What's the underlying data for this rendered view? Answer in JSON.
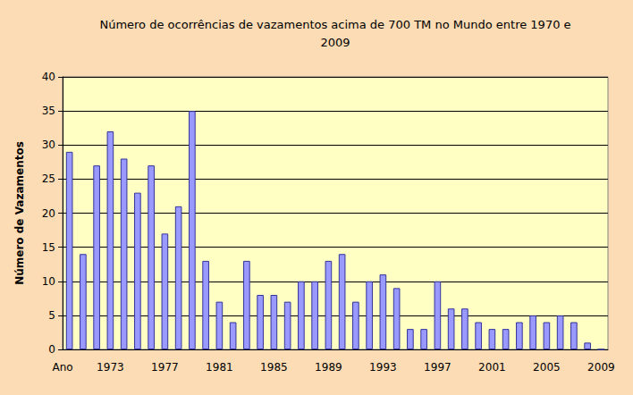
{
  "chart_data": {
    "type": "bar",
    "title": "Número de ocorrências de vazamentos acima de 700 TM no Mundo entre 1970 e\n2009",
    "xlabel": "Ano",
    "ylabel": "Número de Vazamentos",
    "categories": [
      null,
      null,
      null,
      "1973",
      null,
      null,
      null,
      "1977",
      null,
      null,
      null,
      "1981",
      null,
      null,
      null,
      "1985",
      null,
      null,
      null,
      "1989",
      null,
      null,
      null,
      "1993",
      null,
      null,
      null,
      "1997",
      null,
      null,
      null,
      "2001",
      null,
      null,
      null,
      "2005",
      null,
      null,
      null,
      "2009"
    ],
    "values": [
      29,
      14,
      27,
      32,
      28,
      23,
      27,
      17,
      21,
      35,
      13,
      7,
      4,
      13,
      8,
      8,
      7,
      10,
      10,
      13,
      14,
      7,
      10,
      11,
      9,
      3,
      3,
      10,
      6,
      6,
      4,
      3,
      3,
      4,
      5,
      4,
      5,
      4,
      1,
      0
    ],
    "color": "#9999ff",
    "ylim": [
      0,
      40
    ],
    "yticks": [
      0,
      5,
      10,
      15,
      20,
      25,
      30,
      35,
      40
    ],
    "grid": true
  }
}
